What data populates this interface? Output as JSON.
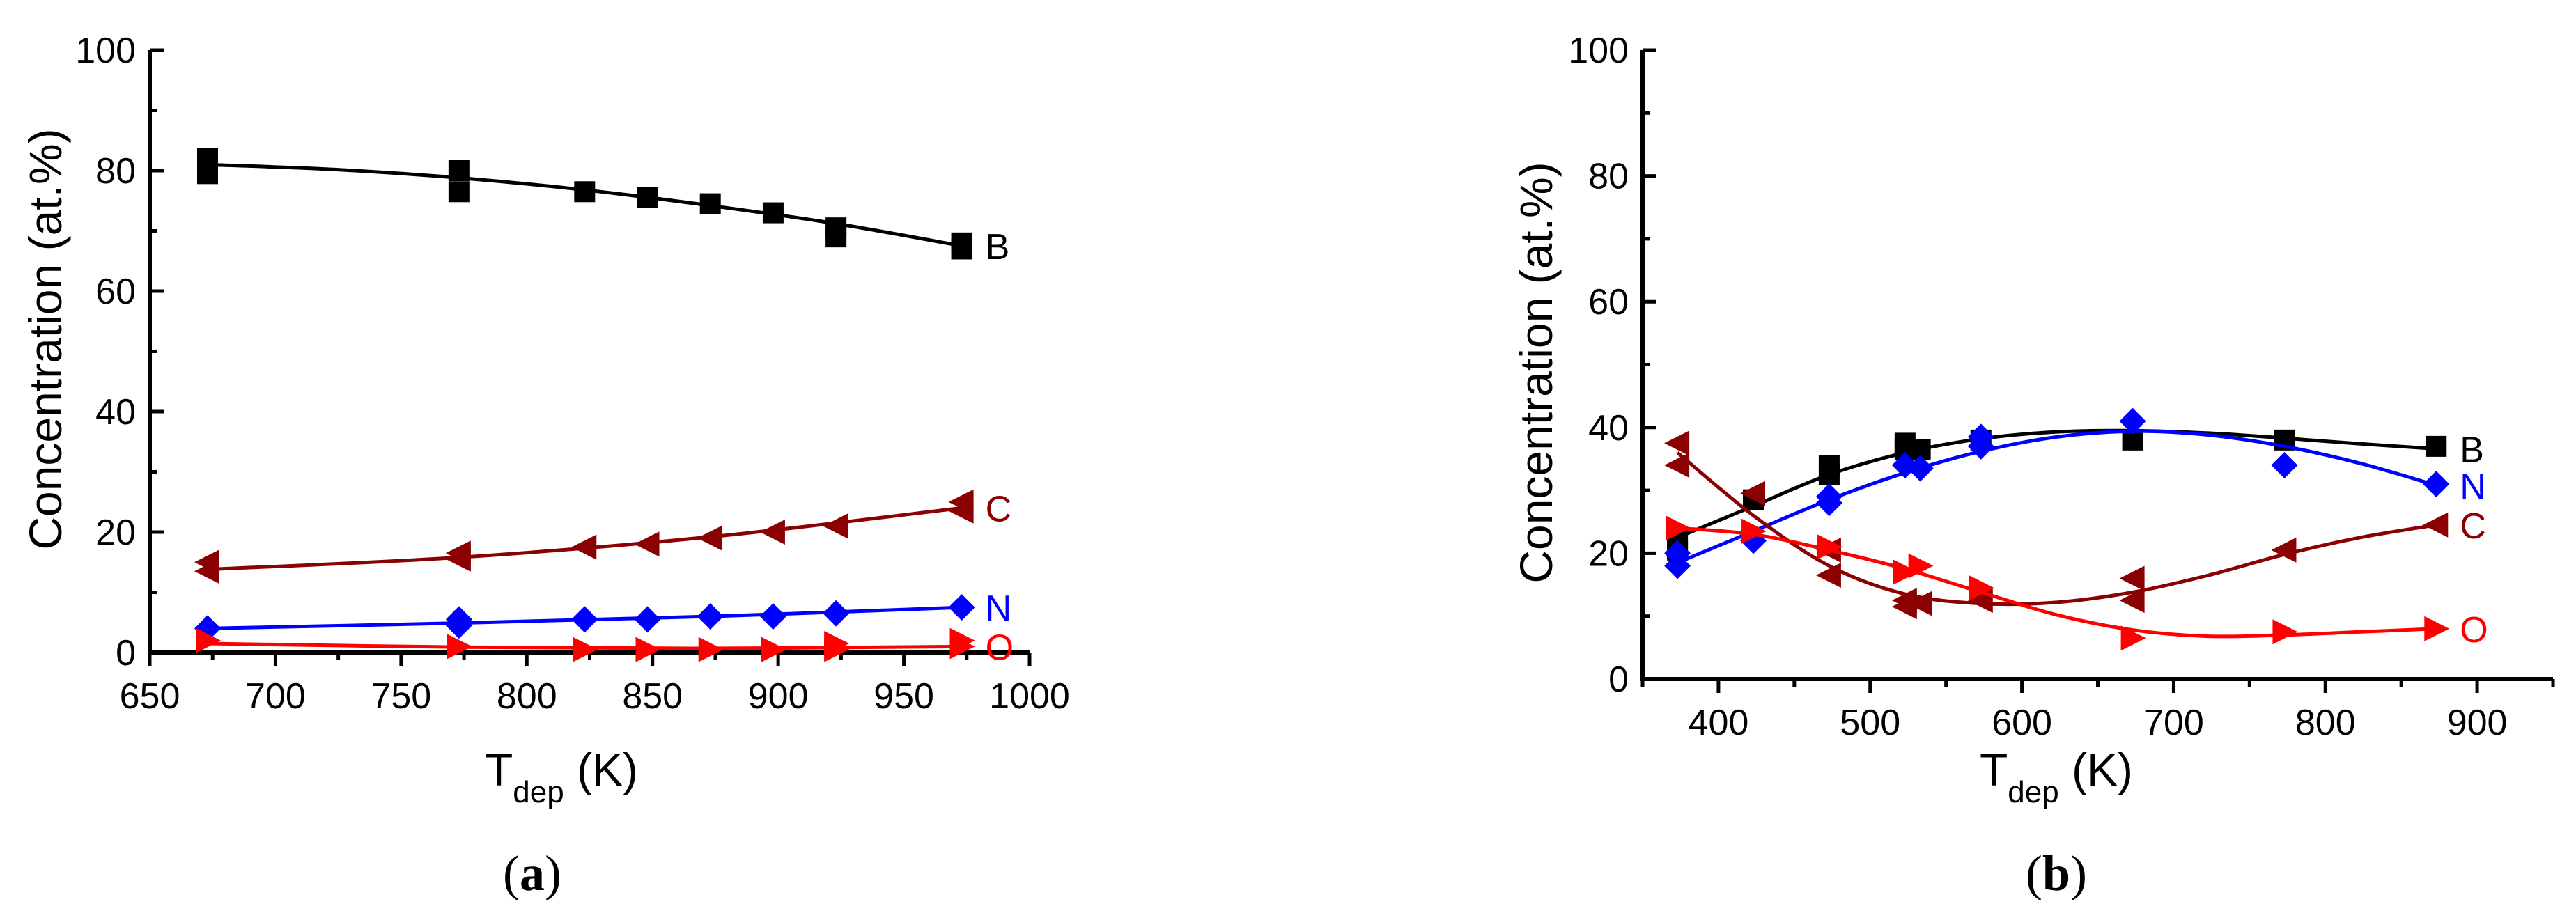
{
  "chart_data": [
    {
      "type": "scatter",
      "panel_label": "a",
      "xlabel": "T",
      "xlabel_sub": "dep",
      "xlabel_unit": " (K)",
      "ylabel": "Concentration (at.%)",
      "xlim": [
        650,
        1000
      ],
      "ylim": [
        0,
        100
      ],
      "xticks": [
        650,
        700,
        750,
        800,
        850,
        900,
        950,
        1000
      ],
      "yticks": [
        0,
        20,
        40,
        60,
        80,
        100
      ],
      "series": [
        {
          "name": "B",
          "color": "#000000",
          "marker": "square",
          "x": [
            673,
            673,
            773,
            773,
            823,
            848,
            873,
            898,
            923,
            923,
            973,
            973
          ],
          "y": [
            82,
            79.5,
            80,
            76.5,
            76.5,
            75.5,
            74.5,
            73,
            70.5,
            69,
            68,
            67
          ],
          "fit_x": [
            673,
            723,
            773,
            823,
            873,
            923,
            973
          ],
          "fit_y": [
            81,
            80.2,
            78.8,
            76.8,
            74.2,
            71.2,
            67.5
          ]
        },
        {
          "name": "C",
          "color": "#8b0000",
          "marker": "triangle-left",
          "x": [
            673,
            673,
            773,
            773,
            823,
            848,
            873,
            898,
            923,
            973,
            973
          ],
          "y": [
            15,
            13.5,
            16.5,
            15.5,
            17.5,
            18,
            19,
            20,
            21,
            25,
            23.5
          ],
          "fit_x": [
            673,
            773,
            873,
            973
          ],
          "fit_y": [
            13.8,
            15.8,
            19.2,
            24
          ]
        },
        {
          "name": "N",
          "color": "#0000ff",
          "marker": "diamond",
          "x": [
            673,
            773,
            773,
            823,
            848,
            873,
            898,
            923,
            973
          ],
          "y": [
            4,
            5.5,
            4.5,
            5.5,
            5.5,
            6,
            6,
            6.5,
            7.5
          ],
          "fit_x": [
            673,
            773,
            873,
            973
          ],
          "fit_y": [
            4,
            4.9,
            6,
            7.5
          ]
        },
        {
          "name": "O",
          "color": "#ff0000",
          "marker": "triangle-right",
          "x": [
            673,
            773,
            823,
            848,
            873,
            898,
            923,
            923,
            973,
            973
          ],
          "y": [
            2,
            1,
            0.5,
            0.5,
            0.5,
            0.5,
            1.5,
            0.5,
            2,
            1
          ],
          "fit_x": [
            673,
            773,
            873,
            973
          ],
          "fit_y": [
            1.5,
            0.9,
            0.7,
            1
          ]
        }
      ]
    },
    {
      "type": "scatter",
      "panel_label": "b",
      "xlabel": "T",
      "xlabel_sub": "dep",
      "xlabel_unit": " (K)",
      "ylabel": "Concentration (at.%)",
      "xlim": [
        350,
        950
      ],
      "ylim": [
        0,
        100
      ],
      "xticks": [
        400,
        500,
        600,
        700,
        800,
        900
      ],
      "yticks": [
        0,
        20,
        40,
        60,
        80,
        100
      ],
      "series": [
        {
          "name": "B",
          "color": "#000000",
          "marker": "square",
          "x": [
            373,
            373,
            423,
            473,
            473,
            523,
            523,
            533,
            573,
            673,
            773,
            873
          ],
          "y": [
            22.5,
            20.5,
            28.5,
            34,
            32.5,
            37.5,
            36.5,
            36.5,
            38,
            38,
            38,
            37
          ],
          "fit_x": [
            373,
            423,
            473,
            523,
            573,
            623,
            673,
            723,
            773,
            823,
            873
          ],
          "fit_y": [
            22.5,
            27.5,
            32.5,
            36,
            38.2,
            39.3,
            39.5,
            39.1,
            38.3,
            37.4,
            36.6
          ]
        },
        {
          "name": "N",
          "color": "#0000ff",
          "marker": "diamond",
          "x": [
            373,
            373,
            423,
            473,
            473,
            523,
            533,
            573,
            573,
            673,
            773,
            873
          ],
          "y": [
            20,
            18,
            22,
            29,
            28,
            34,
            33.5,
            38.5,
            37,
            41,
            34,
            31
          ],
          "fit_x": [
            373,
            423,
            473,
            523,
            573,
            623,
            673,
            723,
            773,
            823,
            873
          ],
          "fit_y": [
            18.5,
            23.5,
            28.5,
            32.8,
            36.2,
            38.5,
            39.4,
            38.8,
            37,
            34.3,
            30.8
          ]
        },
        {
          "name": "C",
          "color": "#8b0000",
          "marker": "triangle-left",
          "x": [
            373,
            373,
            423,
            473,
            473,
            523,
            523,
            533,
            573,
            673,
            673,
            773,
            873
          ],
          "y": [
            37.5,
            34,
            29.5,
            20.5,
            16.5,
            12.5,
            11.5,
            12,
            12.5,
            16,
            12.5,
            20.5,
            24.5
          ],
          "fit_x": [
            373,
            423,
            473,
            523,
            573,
            623,
            673,
            723,
            773,
            823,
            873
          ],
          "fit_y": [
            36,
            26,
            18,
            13.5,
            12,
            12.2,
            13.8,
            16.5,
            19.8,
            22.5,
            24.5
          ]
        },
        {
          "name": "O",
          "color": "#ff0000",
          "marker": "triangle-right",
          "x": [
            373,
            423,
            473,
            523,
            533,
            573,
            673,
            773,
            873
          ],
          "y": [
            24,
            23.5,
            21,
            17,
            18,
            14.5,
            6.5,
            7.5,
            8
          ],
          "fit_x": [
            373,
            423,
            473,
            523,
            573,
            623,
            673,
            723,
            773,
            823,
            873
          ],
          "fit_y": [
            24,
            23,
            20.5,
            17.5,
            13.8,
            10.2,
            7.8,
            6.8,
            7,
            7.5,
            8
          ]
        }
      ]
    }
  ]
}
